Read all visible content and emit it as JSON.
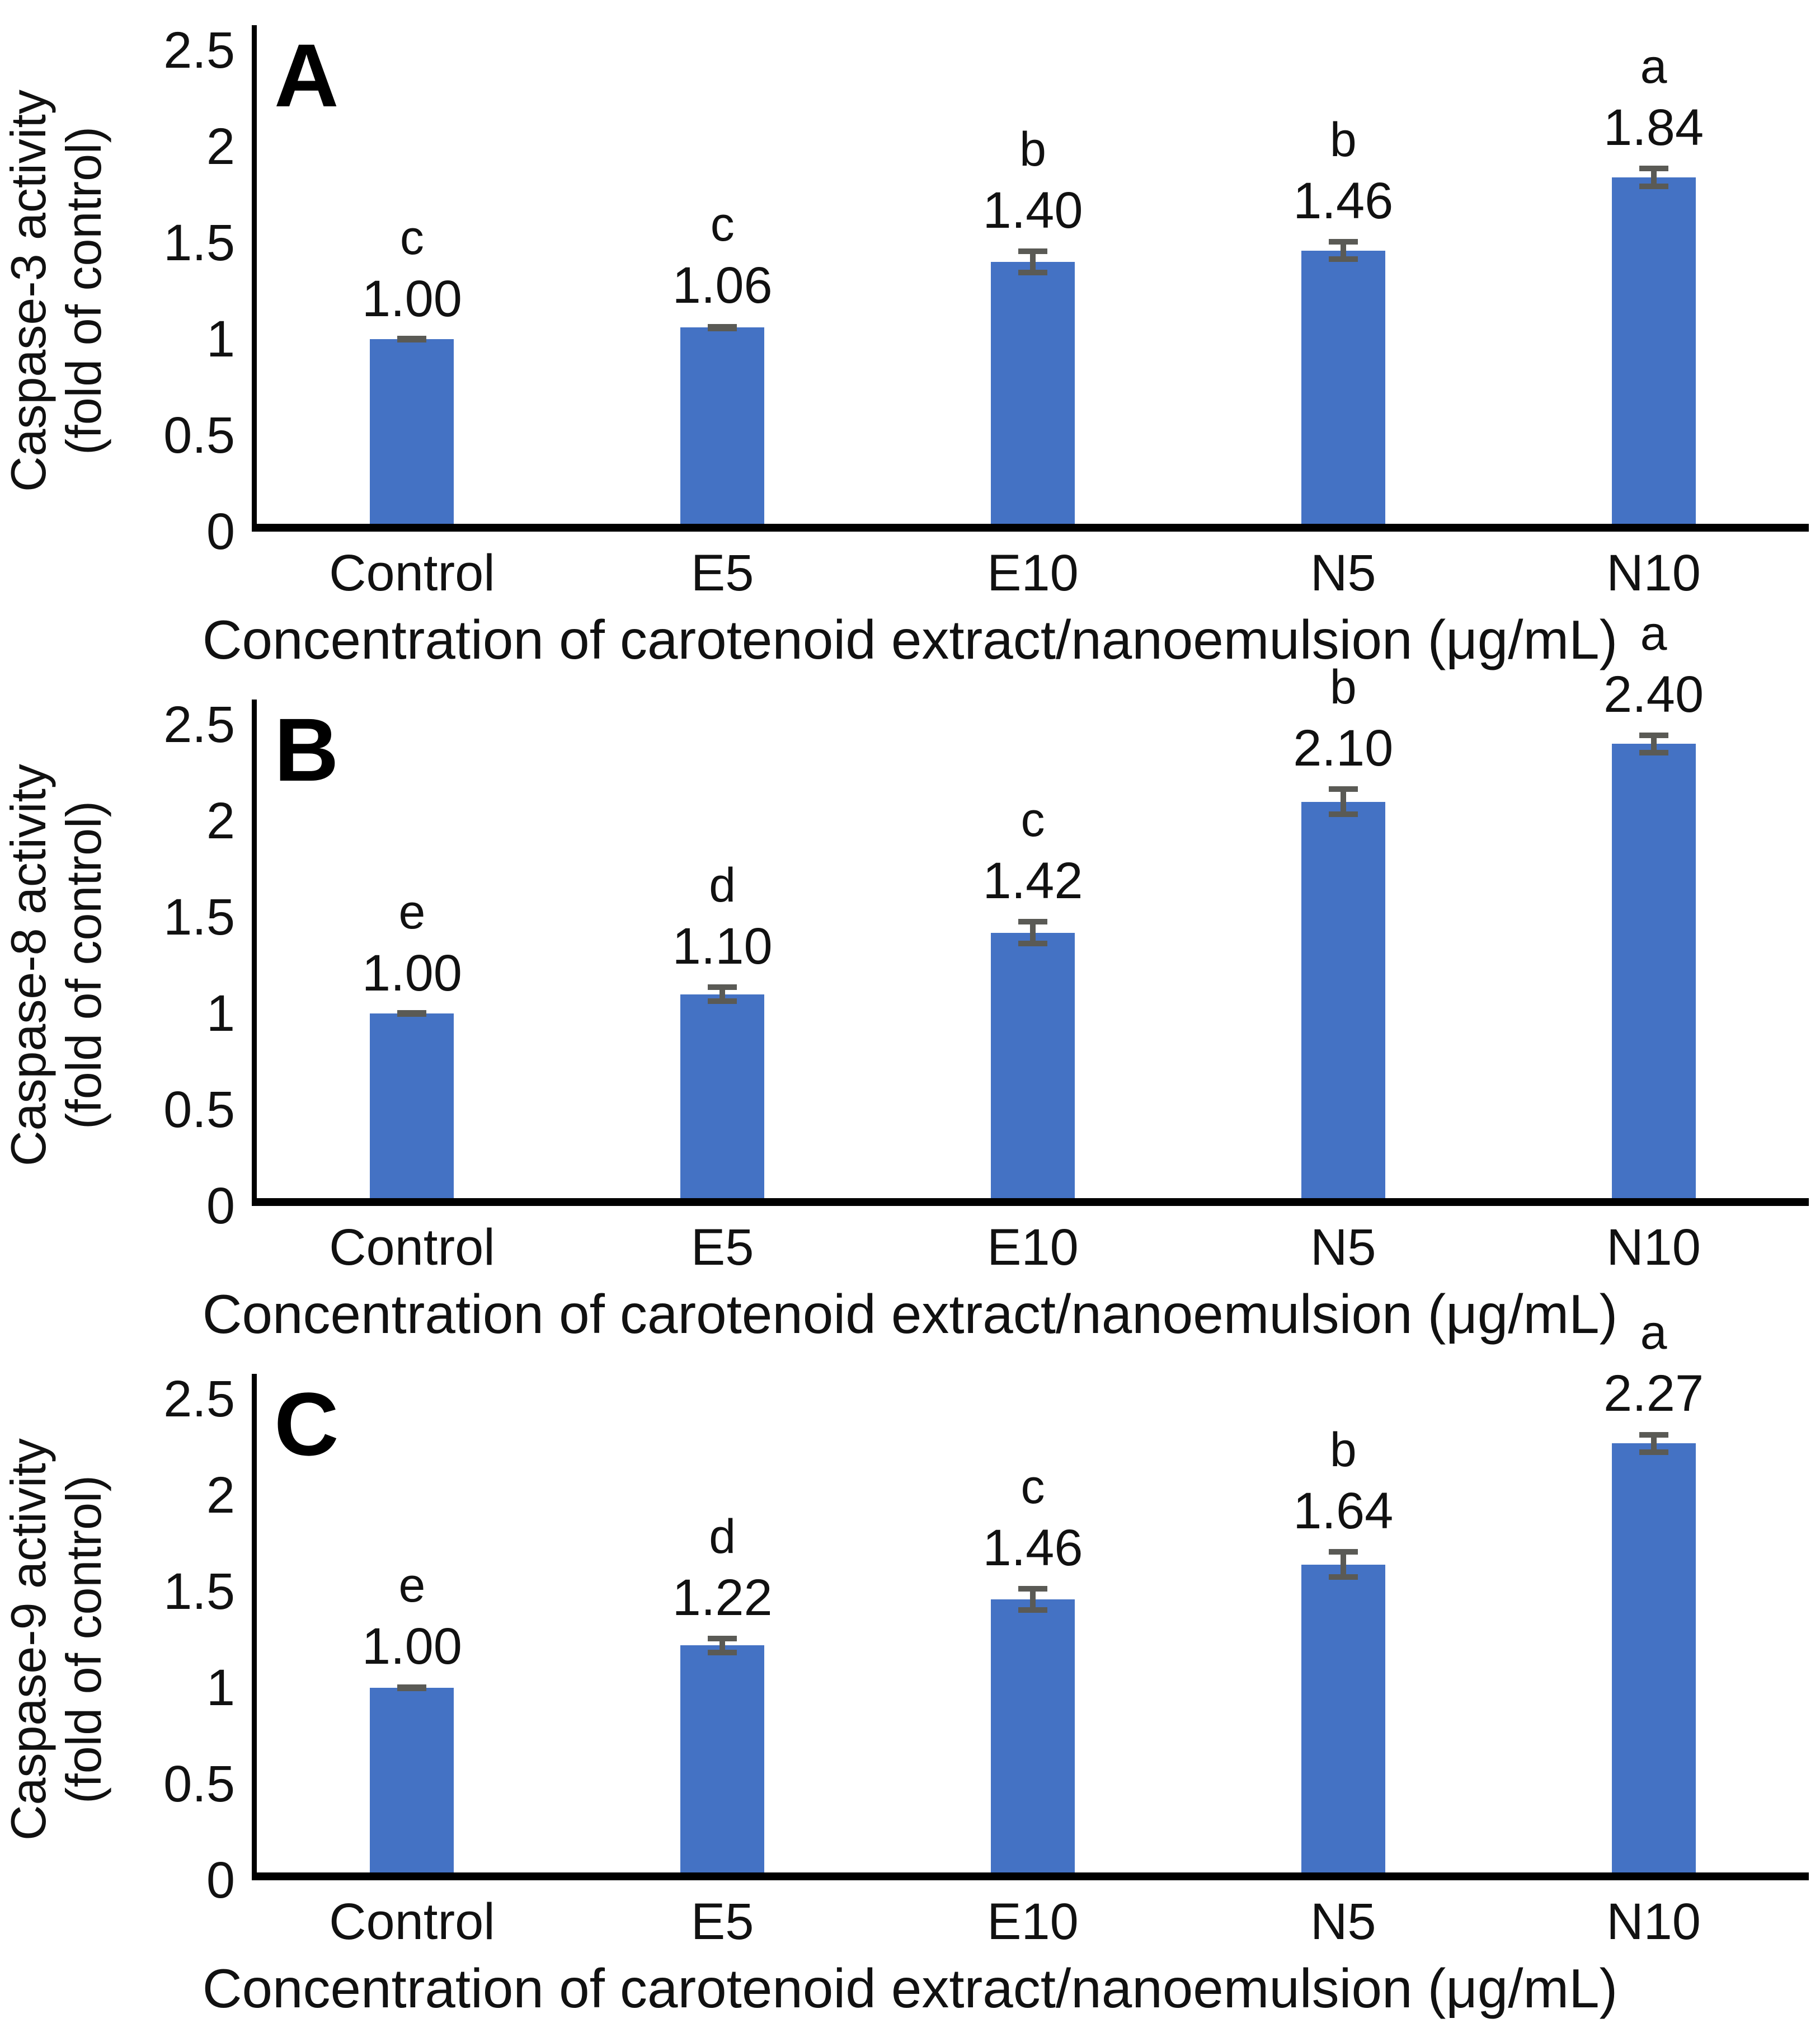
{
  "figure": {
    "bar_color": "#4472C4",
    "error_bar_color": "#5a5a55",
    "axis_color": "#000000",
    "text_color": "#111111",
    "x_axis_title": "Concentration of carotenoid extract/nanoemulsion (μg/mL)",
    "categories": [
      "Control",
      "E5",
      "E10",
      "N5",
      "N10"
    ]
  },
  "chart_data": [
    {
      "type": "bar",
      "panel": "A",
      "ylabel_line1": "Caspase-3 activity",
      "ylabel_line2": "(fold of control)",
      "xlabel": "Concentration of carotenoid extract/nanoemulsion (μg/mL)",
      "categories": [
        "Control",
        "E5",
        "E10",
        "N5",
        "N10"
      ],
      "values": [
        1.0,
        1.06,
        1.4,
        1.46,
        1.84
      ],
      "value_labels": [
        "1.00",
        "1.06",
        "1.40",
        "1.46",
        "1.84"
      ],
      "sig_letters": [
        "c",
        "c",
        "b",
        "b",
        "a"
      ],
      "errors": [
        0.012,
        0.02,
        0.07,
        0.06,
        0.06
      ],
      "ylim": [
        0,
        2.5
      ],
      "grid": false,
      "legend": false,
      "y_ticks": [
        {
          "value": 0,
          "label": "0"
        },
        {
          "value": 0.5,
          "label": "0.5"
        },
        {
          "value": 1,
          "label": "1"
        },
        {
          "value": 1.5,
          "label": "1.5"
        },
        {
          "value": 2,
          "label": "2"
        },
        {
          "value": 2.5,
          "label": "2.5"
        }
      ]
    },
    {
      "type": "bar",
      "panel": "B",
      "ylabel_line1": "Caspase-8 activity",
      "ylabel_line2": "(fold of control)",
      "xlabel": "Concentration of carotenoid extract/nanoemulsion (μg/mL)",
      "categories": [
        "Control",
        "E5",
        "E10",
        "N5",
        "N10"
      ],
      "values": [
        1.0,
        1.1,
        1.42,
        2.1,
        2.4
      ],
      "value_labels": [
        "1.00",
        "1.10",
        "1.42",
        "2.10",
        "2.40"
      ],
      "sig_letters": [
        "e",
        "d",
        "c",
        "b",
        "a"
      ],
      "errors": [
        0.012,
        0.05,
        0.07,
        0.08,
        0.06
      ],
      "ylim": [
        0,
        2.5
      ],
      "grid": false,
      "legend": false,
      "y_ticks": [
        {
          "value": 0,
          "label": "0"
        },
        {
          "value": 0.5,
          "label": "0.5"
        },
        {
          "value": 1,
          "label": "1"
        },
        {
          "value": 1.5,
          "label": "1.5"
        },
        {
          "value": 2,
          "label": "2"
        },
        {
          "value": 2.5,
          "label": "2.5"
        }
      ]
    },
    {
      "type": "bar",
      "panel": "C",
      "ylabel_line1": "Caspase-9 activity",
      "ylabel_line2": "(fold of control)",
      "xlabel": "Concentration of carotenoid extract/nanoemulsion (μg/mL)",
      "categories": [
        "Control",
        "E5",
        "E10",
        "N5",
        "N10"
      ],
      "values": [
        1.0,
        1.22,
        1.46,
        1.64,
        2.27
      ],
      "value_labels": [
        "1.00",
        "1.22",
        "1.46",
        "1.64",
        "2.27"
      ],
      "sig_letters": [
        "e",
        "d",
        "c",
        "b",
        "a"
      ],
      "errors": [
        0.018,
        0.05,
        0.07,
        0.08,
        0.06
      ],
      "ylim": [
        0,
        2.5
      ],
      "grid": false,
      "legend": false,
      "y_ticks": [
        {
          "value": 0,
          "label": "0"
        },
        {
          "value": 0.5,
          "label": "0.5"
        },
        {
          "value": 1,
          "label": "1"
        },
        {
          "value": 1.5,
          "label": "1.5"
        },
        {
          "value": 2,
          "label": "2"
        },
        {
          "value": 2.5,
          "label": "2.5"
        }
      ]
    }
  ]
}
